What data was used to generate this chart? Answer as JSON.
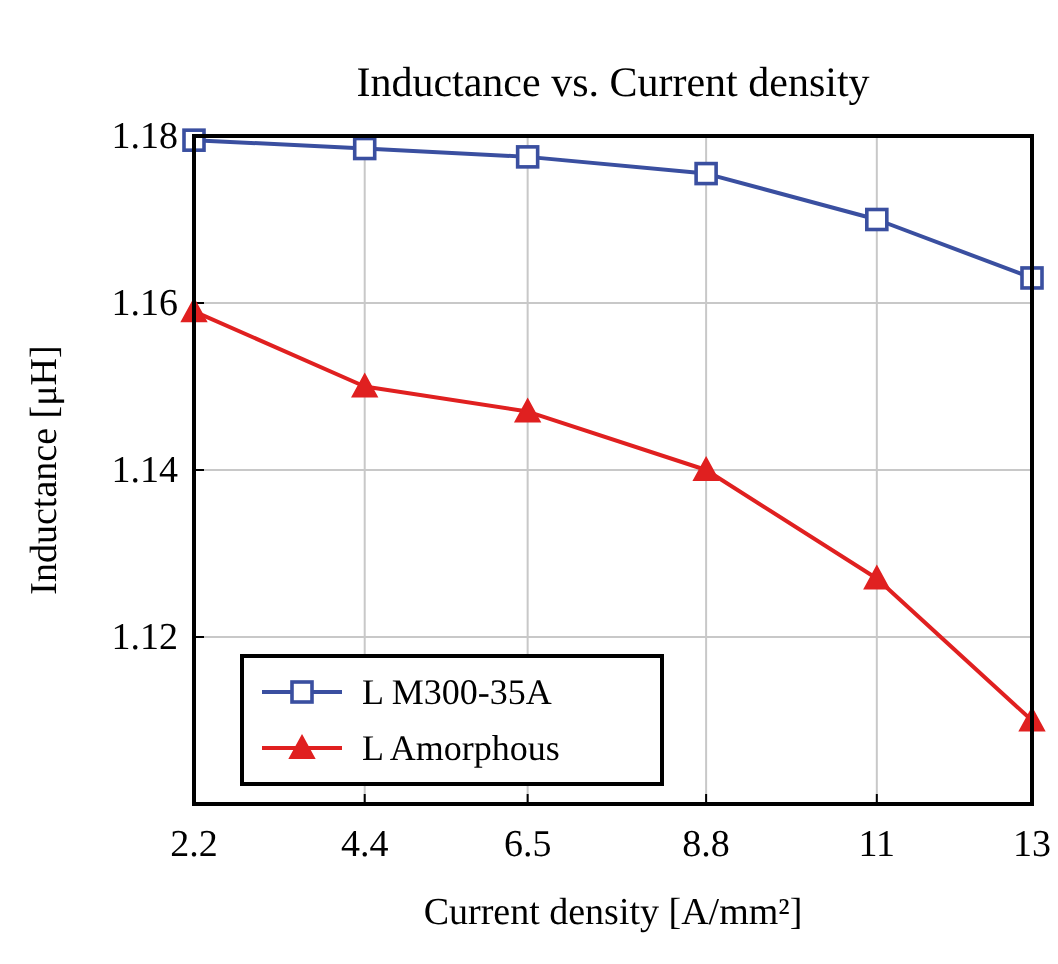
{
  "chart_data": {
    "type": "line",
    "title": "Inductance vs. Current density",
    "xlabel": "Current density [A/mm²]",
    "ylabel": "Inductance [μH]",
    "x": [
      2.2,
      4.4,
      6.5,
      8.8,
      11,
      13
    ],
    "series": [
      {
        "name": "L M300-35A",
        "color": "#3a4fa0",
        "marker": "square",
        "values": [
          1.1795,
          1.1785,
          1.1775,
          1.1755,
          1.17,
          1.163
        ]
      },
      {
        "name": "L Amorphous",
        "color": "#e02020",
        "marker": "triangle",
        "values": [
          1.159,
          1.15,
          1.147,
          1.14,
          1.127,
          1.11
        ]
      }
    ],
    "xlim": [
      2.2,
      13
    ],
    "xticks": [
      2.2,
      4.4,
      6.5,
      8.8,
      11,
      13
    ],
    "ylim": [
      1.1,
      1.18
    ],
    "yticks": [
      1.12,
      1.14,
      1.16,
      1.18
    ],
    "grid": true,
    "legend": "bottom left",
    "line_style": "solid"
  }
}
